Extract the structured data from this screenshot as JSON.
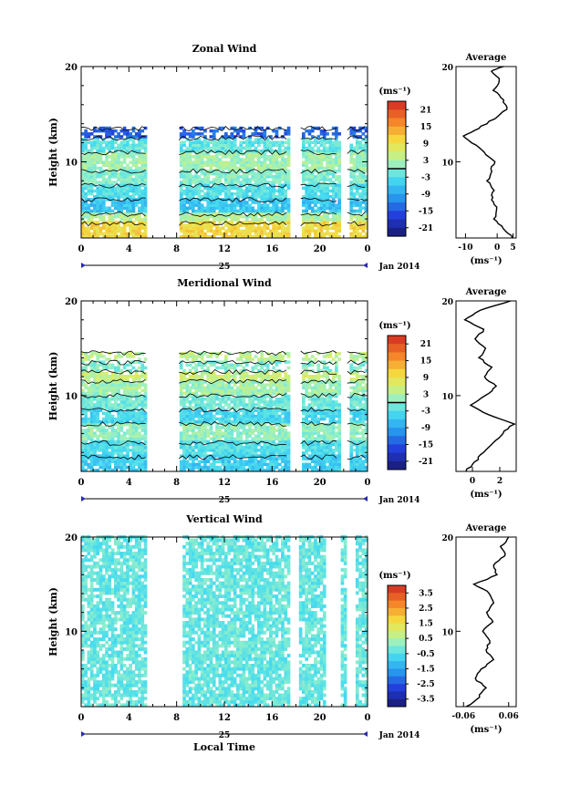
{
  "chart_data": [
    {
      "type": "heatmap",
      "title": "Zonal Wind",
      "ylabel": "Height (km)",
      "ylim": [
        2,
        20
      ],
      "xlim": [
        0,
        24
      ],
      "x_ticks": [
        "0",
        "4",
        "8",
        "12",
        "16",
        "20",
        "0"
      ],
      "y_ticks": [
        "10",
        "20"
      ],
      "day_label": "25",
      "date_label": "Jan 2014",
      "colorbar": {
        "unit": "(ms⁻¹)",
        "range": [
          -24,
          24
        ],
        "ticks": [
          "21",
          "15",
          "9",
          "3",
          "-3",
          "-9",
          "-15",
          "-21"
        ]
      },
      "gaps_hours": [
        [
          5.4,
          8.2
        ],
        [
          17.5,
          18.4
        ],
        [
          21.7,
          22.3
        ]
      ],
      "layers": [
        {
          "z": [
            2,
            3.5
          ],
          "value": 10
        },
        {
          "z": [
            3.5,
            4.5
          ],
          "value": 3
        },
        {
          "z": [
            4.5,
            6
          ],
          "value": -6
        },
        {
          "z": [
            6,
            7.5
          ],
          "value": -3
        },
        {
          "z": [
            7.5,
            9
          ],
          "value": 0
        },
        {
          "z": [
            9,
            11
          ],
          "value": 2
        },
        {
          "z": [
            11,
            12.5
          ],
          "value": -2
        },
        {
          "z": [
            12.5,
            13.5
          ],
          "value": -14
        }
      ],
      "average": {
        "title": "Average",
        "xlabel": "(ms⁻¹)",
        "x_ticks": [
          "-10",
          "0",
          "5"
        ],
        "xlim": [
          -13,
          6
        ],
        "profile": [
          [
            2,
            5
          ],
          [
            3,
            2
          ],
          [
            4,
            -1
          ],
          [
            5,
            0
          ],
          [
            6,
            -2
          ],
          [
            7,
            -1
          ],
          [
            8,
            -3
          ],
          [
            9,
            -2
          ],
          [
            10,
            -1
          ],
          [
            11,
            -4
          ],
          [
            12,
            -8
          ],
          [
            12.7,
            -11
          ],
          [
            13.5,
            -6
          ],
          [
            14.5,
            -1
          ],
          [
            15.5,
            3
          ],
          [
            16.5,
            2
          ],
          [
            17.5,
            -1
          ],
          [
            18.5,
            1
          ],
          [
            19.5,
            -2
          ],
          [
            20,
            2
          ]
        ]
      }
    },
    {
      "type": "heatmap",
      "title": "Meridional Wind",
      "ylabel": "Height (km)",
      "ylim": [
        2,
        20
      ],
      "xlim": [
        0,
        24
      ],
      "x_ticks": [
        "0",
        "4",
        "8",
        "12",
        "16",
        "20",
        "0"
      ],
      "y_ticks": [
        "10",
        "20"
      ],
      "day_label": "25",
      "date_label": "Jan 2014",
      "colorbar": {
        "unit": "(ms⁻¹)",
        "range": [
          -24,
          24
        ],
        "ticks": [
          "21",
          "15",
          "9",
          "3",
          "-3",
          "-9",
          "-15",
          "-21"
        ]
      },
      "gaps_hours": [
        [
          5.4,
          8.2
        ],
        [
          17.5,
          18.4
        ],
        [
          21.7,
          22.3
        ]
      ],
      "layers": [
        {
          "z": [
            2,
            3.5
          ],
          "value": -5
        },
        {
          "z": [
            3.5,
            5
          ],
          "value": -3
        },
        {
          "z": [
            5,
            7
          ],
          "value": 1
        },
        {
          "z": [
            7,
            8.5
          ],
          "value": -4
        },
        {
          "z": [
            8.5,
            10
          ],
          "value": -1
        },
        {
          "z": [
            10,
            11.5
          ],
          "value": 2
        },
        {
          "z": [
            11.5,
            12.5
          ],
          "value": 5
        },
        {
          "z": [
            12.5,
            13.5
          ],
          "value": 0
        },
        {
          "z": [
            13.5,
            14.5
          ],
          "value": 4
        }
      ],
      "average": {
        "title": "Average",
        "xlabel": "(ms⁻¹)",
        "x_ticks": [
          "0",
          "2"
        ],
        "xlim": [
          -1.2,
          3.2
        ],
        "profile": [
          [
            2,
            -0.5
          ],
          [
            3,
            0.2
          ],
          [
            4,
            0.8
          ],
          [
            5,
            1.5
          ],
          [
            6,
            2.2
          ],
          [
            7,
            3.0
          ],
          [
            8,
            1.2
          ],
          [
            9,
            -0.2
          ],
          [
            10,
            1.0
          ],
          [
            11,
            1.8
          ],
          [
            12,
            0.8
          ],
          [
            13,
            1.4
          ],
          [
            14,
            0.5
          ],
          [
            15,
            1.0
          ],
          [
            16,
            0.2
          ],
          [
            17,
            0.9
          ],
          [
            18,
            -0.6
          ],
          [
            19,
            0.5
          ],
          [
            20,
            2.8
          ]
        ]
      }
    },
    {
      "type": "heatmap",
      "title": "Vertical Wind",
      "ylabel": "Height (km)",
      "xlabel": "Local Time",
      "ylim": [
        2,
        20
      ],
      "xlim": [
        0,
        24
      ],
      "x_ticks": [
        "0",
        "4",
        "8",
        "12",
        "16",
        "20",
        "0"
      ],
      "y_ticks": [
        "10",
        "20"
      ],
      "day_label": "25",
      "date_label": "Jan 2014",
      "colorbar": {
        "unit": "(ms⁻¹)",
        "range": [
          -4,
          4
        ],
        "ticks": [
          "3.5",
          "2.5",
          "1.5",
          "0.5",
          "-0.5",
          "-1.5",
          "-2.5",
          "-3.5"
        ]
      },
      "gaps_hours": [
        [
          5.4,
          8.5
        ],
        [
          17.5,
          18.1
        ],
        [
          20.4,
          21.6
        ],
        [
          22.1,
          22.8
        ]
      ],
      "layers": [
        {
          "z": [
            2,
            20
          ],
          "value": -0.3
        }
      ],
      "average": {
        "title": "Average",
        "xlabel": "(ms⁻¹)",
        "x_ticks": [
          "-0.06",
          "0.06"
        ],
        "xlim": [
          -0.08,
          0.08
        ],
        "profile": [
          [
            2,
            -0.05
          ],
          [
            3,
            -0.02
          ],
          [
            4,
            0.0
          ],
          [
            5,
            -0.03
          ],
          [
            6,
            -0.01
          ],
          [
            7,
            0.02
          ],
          [
            8,
            0.0
          ],
          [
            9,
            0.01
          ],
          [
            10,
            -0.01
          ],
          [
            11,
            0.02
          ],
          [
            12,
            0.0
          ],
          [
            13,
            0.02
          ],
          [
            14,
            0.01
          ],
          [
            15,
            -0.03
          ],
          [
            16,
            0.03
          ],
          [
            17,
            0.02
          ],
          [
            18,
            0.05
          ],
          [
            19,
            0.04
          ],
          [
            20,
            0.06
          ]
        ]
      }
    }
  ]
}
